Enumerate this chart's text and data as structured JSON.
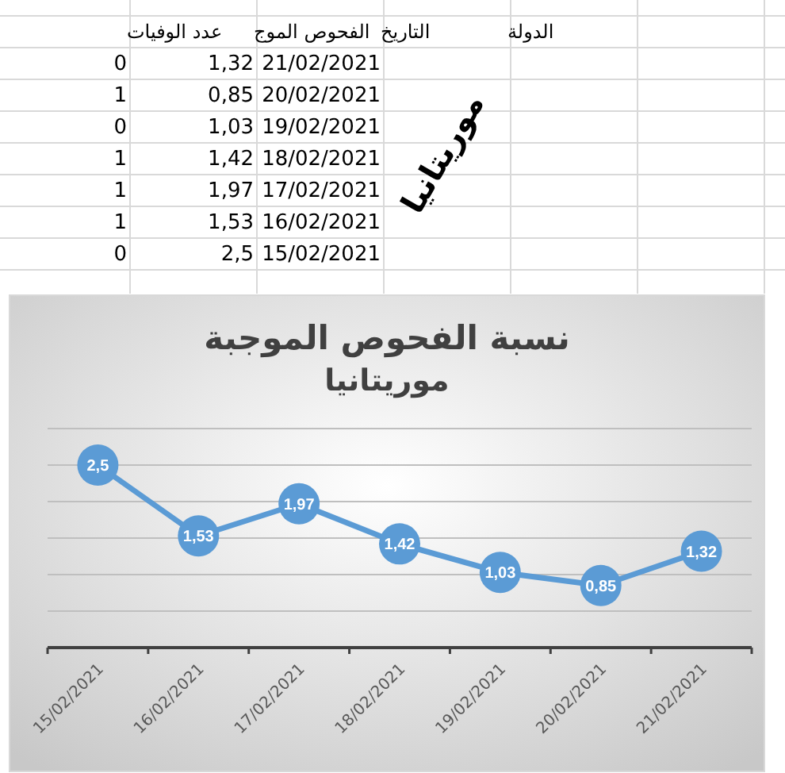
{
  "chart_data": [
    {
      "type": "other",
      "annotations": [
        "الدولة",
        "التاريخ",
        "الفحوص الموج",
        "عدد الوفيات",
        "21/02/2021",
        "1,32",
        "0",
        "20/02/2021",
        "0,85",
        "1",
        "19/02/2021",
        "1,03",
        "0",
        "18/02/2021",
        "1,42",
        "1",
        "17/02/2021",
        "1,97",
        "1",
        "16/02/2021",
        "1,53",
        "1",
        "15/02/2021",
        "2,5",
        "0",
        "موريتانيا"
      ]
    },
    {
      "type": "line",
      "title": "نسبة الفحوص الموجبة",
      "subtitle": "موريتانيا",
      "categories": [
        "15/02/2021",
        "16/02/2021",
        "17/02/2021",
        "18/02/2021",
        "19/02/2021",
        "20/02/2021",
        "21/02/2021"
      ],
      "series": [
        {
          "color": "#5b9bd5",
          "values": [
            2.5,
            1.53,
            1.97,
            1.42,
            1.03,
            0.85,
            1.32
          ],
          "value_labels": [
            "2,5",
            "1,53",
            "1,97",
            "1,42",
            "1,03",
            "0,85",
            "1,32"
          ]
        }
      ],
      "ylim": [
        0,
        3
      ],
      "yticks": [
        {
          "value": 0,
          "label": null
        },
        {
          "value": 0.5,
          "label": null
        },
        {
          "value": 1,
          "label": null
        },
        {
          "value": 1.5,
          "label": null
        },
        {
          "value": 2,
          "label": null
        },
        {
          "value": 2.5,
          "label": null
        },
        {
          "value": 3,
          "label": null
        }
      ],
      "grid": "y",
      "marker": "circle",
      "line_style": "solid"
    }
  ]
}
